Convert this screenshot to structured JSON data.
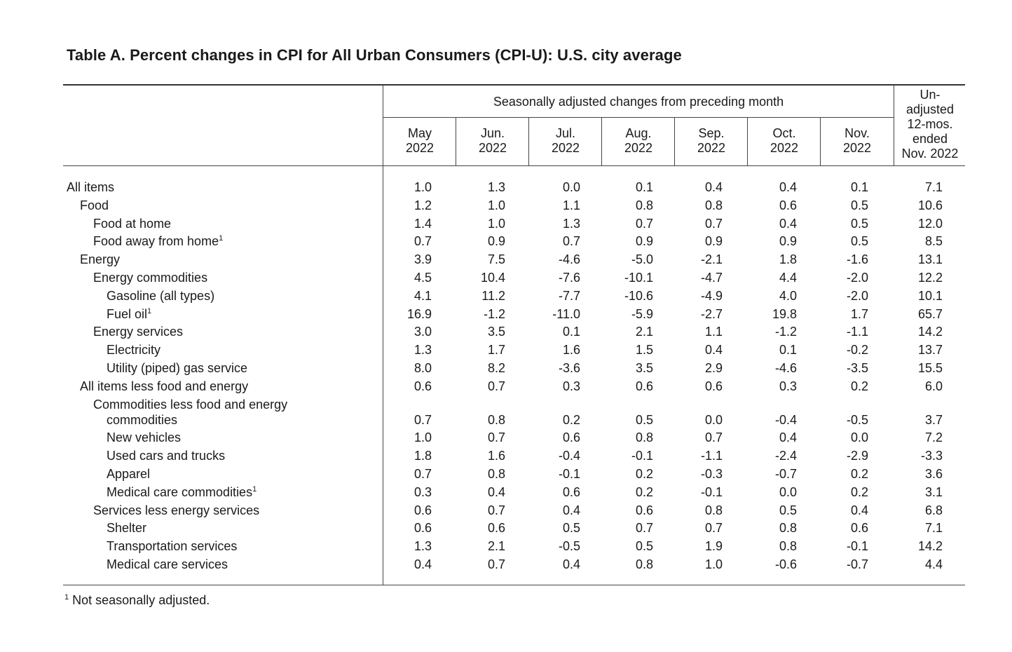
{
  "title": "Table A. Percent changes in CPI for All Urban Consumers (CPI-U): U.S. city average",
  "header": {
    "group_label": "Seasonally adjusted changes from preceding month",
    "unadjusted_label_lines": [
      "Un-",
      "adjusted",
      "12-mos.",
      "ended",
      "Nov. 2022"
    ],
    "months": [
      {
        "month": "May",
        "year": "2022"
      },
      {
        "month": "Jun.",
        "year": "2022"
      },
      {
        "month": "Jul.",
        "year": "2022"
      },
      {
        "month": "Aug.",
        "year": "2022"
      },
      {
        "month": "Sep.",
        "year": "2022"
      },
      {
        "month": "Oct.",
        "year": "2022"
      },
      {
        "month": "Nov.",
        "year": "2022"
      }
    ]
  },
  "rows": [
    {
      "label": "All items",
      "indent": 0,
      "footnote": "",
      "values": [
        "1.0",
        "1.3",
        "0.0",
        "0.1",
        "0.4",
        "0.4",
        "0.1",
        "7.1"
      ]
    },
    {
      "label": "Food",
      "indent": 1,
      "footnote": "",
      "values": [
        "1.2",
        "1.0",
        "1.1",
        "0.8",
        "0.8",
        "0.6",
        "0.5",
        "10.6"
      ]
    },
    {
      "label": "Food at home",
      "indent": 2,
      "footnote": "",
      "values": [
        "1.4",
        "1.0",
        "1.3",
        "0.7",
        "0.7",
        "0.4",
        "0.5",
        "12.0"
      ]
    },
    {
      "label": "Food away from home",
      "indent": 2,
      "footnote": "1",
      "values": [
        "0.7",
        "0.9",
        "0.7",
        "0.9",
        "0.9",
        "0.9",
        "0.5",
        "8.5"
      ]
    },
    {
      "label": "Energy",
      "indent": 1,
      "footnote": "",
      "values": [
        "3.9",
        "7.5",
        "-4.6",
        "-5.0",
        "-2.1",
        "1.8",
        "-1.6",
        "13.1"
      ]
    },
    {
      "label": "Energy commodities",
      "indent": 2,
      "footnote": "",
      "values": [
        "4.5",
        "10.4",
        "-7.6",
        "-10.1",
        "-4.7",
        "4.4",
        "-2.0",
        "12.2"
      ]
    },
    {
      "label": "Gasoline (all types)",
      "indent": 3,
      "footnote": "",
      "values": [
        "4.1",
        "11.2",
        "-7.7",
        "-10.6",
        "-4.9",
        "4.0",
        "-2.0",
        "10.1"
      ]
    },
    {
      "label": "Fuel oil",
      "indent": 3,
      "footnote": "1",
      "values": [
        "16.9",
        "-1.2",
        "-11.0",
        "-5.9",
        "-2.7",
        "19.8",
        "1.7",
        "65.7"
      ]
    },
    {
      "label": "Energy services",
      "indent": 2,
      "footnote": "",
      "values": [
        "3.0",
        "3.5",
        "0.1",
        "2.1",
        "1.1",
        "-1.2",
        "-1.1",
        "14.2"
      ]
    },
    {
      "label": "Electricity",
      "indent": 3,
      "footnote": "",
      "values": [
        "1.3",
        "1.7",
        "1.6",
        "1.5",
        "0.4",
        "0.1",
        "-0.2",
        "13.7"
      ]
    },
    {
      "label": "Utility (piped) gas service",
      "indent": 3,
      "footnote": "",
      "values": [
        "8.0",
        "8.2",
        "-3.6",
        "3.5",
        "2.9",
        "-4.6",
        "-3.5",
        "15.5"
      ]
    },
    {
      "label": "All items less food and energy",
      "indent": 1,
      "footnote": "",
      "values": [
        "0.6",
        "0.7",
        "0.3",
        "0.6",
        "0.6",
        "0.3",
        "0.2",
        "6.0"
      ]
    },
    {
      "label": "Commodities less food and energy",
      "label2": "commodities",
      "indent": 2,
      "footnote": "",
      "values": [
        "0.7",
        "0.8",
        "0.2",
        "0.5",
        "0.0",
        "-0.4",
        "-0.5",
        "3.7"
      ]
    },
    {
      "label": "New vehicles",
      "indent": 3,
      "footnote": "",
      "values": [
        "1.0",
        "0.7",
        "0.6",
        "0.8",
        "0.7",
        "0.4",
        "0.0",
        "7.2"
      ]
    },
    {
      "label": "Used cars and trucks",
      "indent": 3,
      "footnote": "",
      "values": [
        "1.8",
        "1.6",
        "-0.4",
        "-0.1",
        "-1.1",
        "-2.4",
        "-2.9",
        "-3.3"
      ]
    },
    {
      "label": "Apparel",
      "indent": 3,
      "footnote": "",
      "values": [
        "0.7",
        "0.8",
        "-0.1",
        "0.2",
        "-0.3",
        "-0.7",
        "0.2",
        "3.6"
      ]
    },
    {
      "label": "Medical care commodities",
      "indent": 3,
      "footnote": "1",
      "values": [
        "0.3",
        "0.4",
        "0.6",
        "0.2",
        "-0.1",
        "0.0",
        "0.2",
        "3.1"
      ]
    },
    {
      "label": "Services less energy services",
      "indent": 2,
      "footnote": "",
      "values": [
        "0.6",
        "0.7",
        "0.4",
        "0.6",
        "0.8",
        "0.5",
        "0.4",
        "6.8"
      ]
    },
    {
      "label": "Shelter",
      "indent": 3,
      "footnote": "",
      "values": [
        "0.6",
        "0.6",
        "0.5",
        "0.7",
        "0.7",
        "0.8",
        "0.6",
        "7.1"
      ]
    },
    {
      "label": "Transportation services",
      "indent": 3,
      "footnote": "",
      "values": [
        "1.3",
        "2.1",
        "-0.5",
        "0.5",
        "1.9",
        "0.8",
        "-0.1",
        "14.2"
      ]
    },
    {
      "label": "Medical care services",
      "indent": 3,
      "footnote": "",
      "values": [
        "0.4",
        "0.7",
        "0.4",
        "0.8",
        "1.0",
        "-0.6",
        "-0.7",
        "4.4"
      ]
    }
  ],
  "footnote": {
    "mark": "1",
    "text": "Not seasonally adjusted."
  }
}
